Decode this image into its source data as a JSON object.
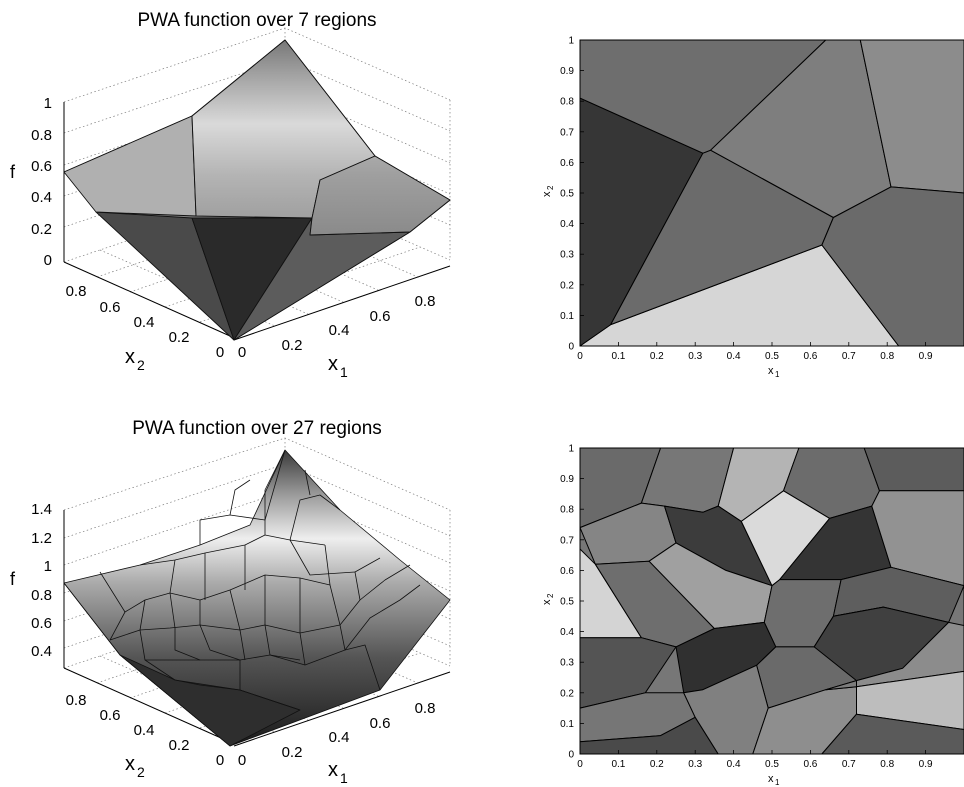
{
  "chart_data": [
    {
      "type": "surface",
      "title": "PWA function over 7 regions",
      "xlabel": "x",
      "xlabel_sub": "1",
      "ylabel": "x",
      "ylabel_sub": "2",
      "zlabel": "f",
      "x_ticks": [
        "0",
        "0.2",
        "0.4",
        "0.6",
        "0.8"
      ],
      "y_ticks": [
        "0",
        "0.2",
        "0.4",
        "0.6",
        "0.8"
      ],
      "z_ticks": [
        "0",
        "0.2",
        "0.4",
        "0.6",
        "0.8",
        "1"
      ],
      "xlim": [
        0,
        1
      ],
      "ylim": [
        0,
        1
      ],
      "zlim": [
        0,
        1.1
      ],
      "colormap": "gray",
      "grid": true,
      "region_count": 7
    },
    {
      "type": "region_partition",
      "xlabel": "x",
      "xlabel_sub": "1",
      "ylabel": "x",
      "ylabel_sub": "2",
      "x_ticks": [
        "0",
        "0.1",
        "0.2",
        "0.3",
        "0.4",
        "0.5",
        "0.6",
        "0.7",
        "0.8",
        "0.9"
      ],
      "y_ticks": [
        "0",
        "0.1",
        "0.2",
        "0.3",
        "0.4",
        "0.5",
        "0.6",
        "0.7",
        "0.8",
        "0.9",
        "1"
      ],
      "xlim": [
        0,
        1
      ],
      "ylim": [
        0,
        1
      ],
      "regions": [
        {
          "fill": "#d6d6d6",
          "vertices": [
            [
              0,
              0
            ],
            [
              0.08,
              0.07
            ],
            [
              0.63,
              0.33
            ],
            [
              0.83,
              0
            ],
            [
              0,
              0
            ]
          ]
        },
        {
          "fill": "#363636",
          "vertices": [
            [
              0,
              0
            ],
            [
              0,
              0.81
            ],
            [
              0.32,
              0.63
            ],
            [
              0.08,
              0.07
            ]
          ]
        },
        {
          "fill": "#6b6b6b",
          "vertices": [
            [
              0.08,
              0.07
            ],
            [
              0.32,
              0.63
            ],
            [
              0.34,
              0.64
            ],
            [
              0.66,
              0.42
            ],
            [
              0.63,
              0.33
            ]
          ]
        },
        {
          "fill": "#6e6e6e",
          "vertices": [
            [
              0,
              0.81
            ],
            [
              0,
              1
            ],
            [
              0.64,
              1
            ],
            [
              0.34,
              0.64
            ],
            [
              0.32,
              0.63
            ]
          ]
        },
        {
          "fill": "#7e7e7e",
          "vertices": [
            [
              0.34,
              0.64
            ],
            [
              0.64,
              1
            ],
            [
              0.73,
              1
            ],
            [
              0.81,
              0.52
            ],
            [
              0.66,
              0.42
            ]
          ]
        },
        {
          "fill": "#8c8c8c",
          "vertices": [
            [
              0.73,
              1
            ],
            [
              1,
              1
            ],
            [
              1,
              0.5
            ],
            [
              0.81,
              0.52
            ]
          ]
        },
        {
          "fill": "#6a6a6a",
          "vertices": [
            [
              0.63,
              0.33
            ],
            [
              0.66,
              0.42
            ],
            [
              0.81,
              0.52
            ],
            [
              1,
              0.5
            ],
            [
              1,
              0
            ],
            [
              0.83,
              0
            ]
          ]
        }
      ]
    },
    {
      "type": "surface",
      "title": "PWA function over 27 regions",
      "xlabel": "x",
      "xlabel_sub": "1",
      "ylabel": "x",
      "ylabel_sub": "2",
      "zlabel": "f",
      "x_ticks": [
        "0",
        "0.2",
        "0.4",
        "0.6",
        "0.8"
      ],
      "y_ticks": [
        "0",
        "0.2",
        "0.4",
        "0.6",
        "0.8"
      ],
      "z_ticks": [
        "0.4",
        "0.6",
        "0.8",
        "1",
        "1.2",
        "1.4"
      ],
      "xlim": [
        0,
        1
      ],
      "ylim": [
        0,
        1
      ],
      "zlim": [
        0.3,
        1.55
      ],
      "colormap": "gray",
      "grid": true,
      "region_count": 27
    },
    {
      "type": "region_partition",
      "xlabel": "x",
      "xlabel_sub": "1",
      "ylabel": "x",
      "ylabel_sub": "2",
      "x_ticks": [
        "0",
        "0.1",
        "0.2",
        "0.3",
        "0.4",
        "0.5",
        "0.6",
        "0.7",
        "0.8",
        "0.9"
      ],
      "y_ticks": [
        "0",
        "0.1",
        "0.2",
        "0.3",
        "0.4",
        "0.5",
        "0.6",
        "0.7",
        "0.8",
        "0.9",
        "1"
      ],
      "xlim": [
        0,
        1
      ],
      "ylim": [
        0,
        1
      ],
      "regions": [
        {
          "fill": "#6a6a6a",
          "vertices": [
            [
              0,
              0.74
            ],
            [
              0,
              1
            ],
            [
              0.21,
              1
            ],
            [
              0.16,
              0.82
            ]
          ]
        },
        {
          "fill": "#777777",
          "vertices": [
            [
              0.21,
              1
            ],
            [
              0.16,
              0.82
            ],
            [
              0.22,
              0.81
            ],
            [
              0.32,
              0.79
            ],
            [
              0.36,
              0.81
            ],
            [
              0.4,
              1
            ]
          ]
        },
        {
          "fill": "#b4b4b4",
          "vertices": [
            [
              0.4,
              1
            ],
            [
              0.36,
              0.81
            ],
            [
              0.42,
              0.76
            ],
            [
              0.53,
              0.86
            ],
            [
              0.57,
              1
            ]
          ]
        },
        {
          "fill": "#6c6c6c",
          "vertices": [
            [
              0.57,
              1
            ],
            [
              0.53,
              0.86
            ],
            [
              0.65,
              0.77
            ],
            [
              0.76,
              0.81
            ],
            [
              0.78,
              0.86
            ],
            [
              0.74,
              1
            ]
          ]
        },
        {
          "fill": "#5c5c5c",
          "vertices": [
            [
              0.74,
              1
            ],
            [
              1,
              1
            ],
            [
              1,
              0.86
            ],
            [
              0.78,
              0.86
            ]
          ]
        },
        {
          "fill": "#858585",
          "vertices": [
            [
              0,
              0.74
            ],
            [
              0.16,
              0.82
            ],
            [
              0.22,
              0.81
            ],
            [
              0.25,
              0.69
            ],
            [
              0.18,
              0.63
            ],
            [
              0.04,
              0.62
            ]
          ]
        },
        {
          "fill": "#3c3c3c",
          "vertices": [
            [
              0.22,
              0.81
            ],
            [
              0.32,
              0.79
            ],
            [
              0.36,
              0.81
            ],
            [
              0.42,
              0.76
            ],
            [
              0.5,
              0.55
            ],
            [
              0.38,
              0.6
            ],
            [
              0.25,
              0.69
            ]
          ]
        },
        {
          "fill": "#dadada",
          "vertices": [
            [
              0.42,
              0.76
            ],
            [
              0.53,
              0.86
            ],
            [
              0.65,
              0.77
            ],
            [
              0.52,
              0.57
            ],
            [
              0.5,
              0.55
            ]
          ]
        },
        {
          "fill": "#343434",
          "vertices": [
            [
              0.65,
              0.77
            ],
            [
              0.76,
              0.81
            ],
            [
              0.81,
              0.61
            ],
            [
              0.68,
              0.57
            ],
            [
              0.52,
              0.57
            ]
          ]
        },
        {
          "fill": "#929292",
          "vertices": [
            [
              0.78,
              0.86
            ],
            [
              1,
              0.86
            ],
            [
              1,
              0.55
            ],
            [
              0.81,
              0.61
            ],
            [
              0.76,
              0.81
            ]
          ]
        },
        {
          "fill": "#d4d4d4",
          "vertices": [
            [
              0,
              0.38
            ],
            [
              0,
              0.67
            ],
            [
              0.04,
              0.62
            ],
            [
              0.16,
              0.38
            ]
          ]
        },
        {
          "fill": "#6e6e6e",
          "vertices": [
            [
              0.04,
              0.62
            ],
            [
              0.18,
              0.63
            ],
            [
              0.35,
              0.41
            ],
            [
              0.25,
              0.35
            ],
            [
              0.16,
              0.38
            ]
          ]
        },
        {
          "fill": "#a0a0a0",
          "vertices": [
            [
              0.18,
              0.63
            ],
            [
              0.25,
              0.69
            ],
            [
              0.38,
              0.6
            ],
            [
              0.5,
              0.55
            ],
            [
              0.48,
              0.43
            ],
            [
              0.35,
              0.41
            ]
          ]
        },
        {
          "fill": "#6e6e6e",
          "vertices": [
            [
              0.5,
              0.55
            ],
            [
              0.52,
              0.57
            ],
            [
              0.68,
              0.57
            ],
            [
              0.66,
              0.45
            ],
            [
              0.61,
              0.35
            ],
            [
              0.51,
              0.35
            ],
            [
              0.48,
              0.43
            ]
          ]
        },
        {
          "fill": "#5e5e5e",
          "vertices": [
            [
              0.68,
              0.57
            ],
            [
              0.81,
              0.61
            ],
            [
              1,
              0.55
            ],
            [
              0.96,
              0.43
            ],
            [
              0.79,
              0.48
            ],
            [
              0.66,
              0.45
            ]
          ]
        },
        {
          "fill": "#545454",
          "vertices": [
            [
              0,
              0.15
            ],
            [
              0,
              0.38
            ],
            [
              0.16,
              0.38
            ],
            [
              0.25,
              0.35
            ],
            [
              0.17,
              0.2
            ]
          ]
        },
        {
          "fill": "#303030",
          "vertices": [
            [
              0.25,
              0.35
            ],
            [
              0.35,
              0.41
            ],
            [
              0.48,
              0.43
            ],
            [
              0.51,
              0.35
            ],
            [
              0.46,
              0.29
            ],
            [
              0.32,
              0.21
            ],
            [
              0.27,
              0.2
            ]
          ]
        },
        {
          "fill": "#6a6a6a",
          "vertices": [
            [
              0.51,
              0.35
            ],
            [
              0.61,
              0.35
            ],
            [
              0.66,
              0.45
            ],
            [
              0.79,
              0.48
            ],
            [
              0.72,
              0.24
            ],
            [
              0.64,
              0.21
            ],
            [
              0.49,
              0.15
            ],
            [
              0.46,
              0.29
            ]
          ]
        },
        {
          "fill": "#404040",
          "vertices": [
            [
              0.61,
              0.35
            ],
            [
              0.66,
              0.45
            ],
            [
              0.79,
              0.48
            ],
            [
              0.96,
              0.43
            ],
            [
              0.84,
              0.28
            ],
            [
              0.72,
              0.24
            ]
          ]
        },
        {
          "fill": "#8c8c8c",
          "vertices": [
            [
              0.84,
              0.28
            ],
            [
              0.96,
              0.43
            ],
            [
              1,
              0.42
            ],
            [
              1,
              0.27
            ],
            [
              0.72,
              0.22
            ],
            [
              0.72,
              0.24
            ]
          ]
        },
        {
          "fill": "#767676",
          "vertices": [
            [
              0,
              0.04
            ],
            [
              0,
              0.15
            ],
            [
              0.17,
              0.2
            ],
            [
              0.27,
              0.2
            ],
            [
              0.3,
              0.12
            ],
            [
              0.21,
              0.06
            ]
          ]
        },
        {
          "fill": "#4a4a4a",
          "vertices": [
            [
              0,
              0
            ],
            [
              0,
              0.04
            ],
            [
              0.21,
              0.06
            ],
            [
              0.3,
              0.12
            ],
            [
              0.36,
              0
            ],
            [
              0,
              0
            ]
          ]
        },
        {
          "fill": "#808080",
          "vertices": [
            [
              0.3,
              0.12
            ],
            [
              0.27,
              0.2
            ],
            [
              0.32,
              0.21
            ],
            [
              0.46,
              0.29
            ],
            [
              0.49,
              0.15
            ],
            [
              0.45,
              0
            ],
            [
              0.36,
              0
            ]
          ]
        },
        {
          "fill": "#8e8e8e",
          "vertices": [
            [
              0.45,
              0
            ],
            [
              0.49,
              0.15
            ],
            [
              0.64,
              0.21
            ],
            [
              0.72,
              0.22
            ],
            [
              0.72,
              0.13
            ],
            [
              0.63,
              0
            ]
          ]
        },
        {
          "fill": "#bdbdbd",
          "vertices": [
            [
              0.72,
              0.13
            ],
            [
              0.72,
              0.22
            ],
            [
              1,
              0.27
            ],
            [
              1,
              0.08
            ]
          ]
        },
        {
          "fill": "#5a5a5a",
          "vertices": [
            [
              0.63,
              0
            ],
            [
              0.72,
              0.13
            ],
            [
              1,
              0.08
            ],
            [
              1,
              0
            ]
          ]
        },
        {
          "fill": "#7c7c7c",
          "vertices": [
            [
              0.72,
              0.22
            ],
            [
              0.64,
              0.21
            ],
            [
              0.72,
              0.24
            ]
          ]
        }
      ]
    }
  ]
}
